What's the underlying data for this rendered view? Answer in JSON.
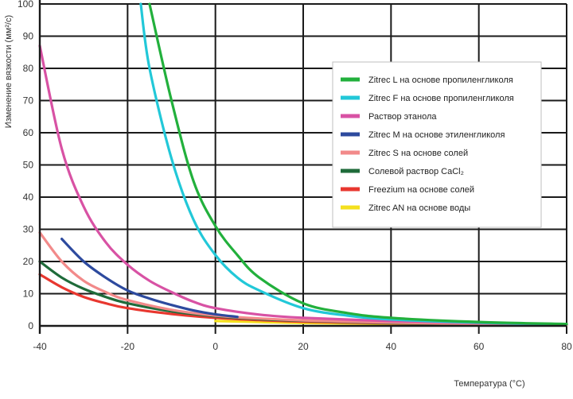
{
  "chart_data": {
    "type": "line",
    "xlabel": "Температура (°C)",
    "ylabel": "Изменение вязкости (мм²/с)",
    "x_ticks": [
      -40,
      -20,
      0,
      20,
      40,
      60,
      80
    ],
    "y_ticks": [
      0,
      10,
      20,
      30,
      40,
      50,
      60,
      70,
      80,
      90,
      100
    ],
    "xlim": [
      -40,
      80
    ],
    "ylim": [
      0,
      100
    ],
    "grid": true,
    "legend_position": "top-right",
    "series": [
      {
        "name": "Zitrec L на основе пропиленгликоля",
        "color": "#22b03c",
        "x": [
          -15,
          -10,
          -5,
          0,
          5,
          10,
          20,
          30,
          40,
          60,
          80
        ],
        "y": [
          100,
          70,
          45,
          31,
          22,
          15,
          7,
          4,
          2.5,
          1.2,
          0.6
        ]
      },
      {
        "name": "Zitrec F на основе пропиленгликоля",
        "color": "#22c8d8",
        "x": [
          -17,
          -15,
          -10,
          -5,
          0,
          5,
          10,
          20,
          30,
          40,
          60,
          80
        ],
        "y": [
          100,
          80,
          52,
          33,
          22,
          15,
          11,
          5.5,
          3.2,
          2,
          1,
          0.5
        ]
      },
      {
        "name": "Раствор этанола",
        "color": "#d852a4",
        "x": [
          -40,
          -35,
          -30,
          -25,
          -20,
          -15,
          -10,
          -5,
          0,
          10,
          20,
          40,
          60,
          80
        ],
        "y": [
          87,
          55,
          37,
          26,
          19,
          14,
          10.5,
          7.5,
          5.5,
          3.5,
          2.5,
          1.5,
          0.9,
          0.5
        ]
      },
      {
        "name": "Zitrec M на основе этиленгликоля",
        "color": "#2d4a9e",
        "x": [
          -35,
          -30,
          -25,
          -20,
          -15,
          -10,
          -5,
          0,
          5
        ],
        "y": [
          27,
          20,
          15,
          11,
          8.5,
          6.5,
          4.8,
          3.6,
          2.8
        ]
      },
      {
        "name": "Zitrec S на основе солей",
        "color": "#f28a8a",
        "x": [
          -40,
          -35,
          -30,
          -25,
          -20,
          -10,
          0,
          10,
          20,
          40,
          60,
          80
        ],
        "y": [
          29,
          20,
          14,
          10.5,
          8,
          5,
          3.2,
          2.3,
          1.7,
          1,
          0.6,
          0.4
        ]
      },
      {
        "name": "Солевой раствор CaCl₂",
        "color": "#1f6b3a",
        "x": [
          -40,
          -35,
          -30,
          -25,
          -20,
          -10,
          0,
          10,
          20,
          40,
          60,
          80
        ],
        "y": [
          20,
          15,
          11.5,
          9,
          7,
          4.5,
          3,
          2.1,
          1.6,
          0.9,
          0.6,
          0.4
        ]
      },
      {
        "name": "Freezium на основе солей",
        "color": "#e8372f",
        "x": [
          -40,
          -35,
          -30,
          -25,
          -20,
          -10,
          0,
          10,
          20,
          40,
          60,
          80
        ],
        "y": [
          16,
          12,
          9,
          7,
          5.5,
          3.7,
          2.5,
          1.8,
          1.3,
          0.8,
          0.5,
          0.3
        ]
      },
      {
        "name": "Zitrec AN на основе воды",
        "color": "#f4e01e",
        "x": [
          0,
          10,
          20,
          40,
          60,
          80
        ],
        "y": [
          1.5,
          1.2,
          0.9,
          0.6,
          0.4,
          0.3
        ]
      }
    ]
  }
}
